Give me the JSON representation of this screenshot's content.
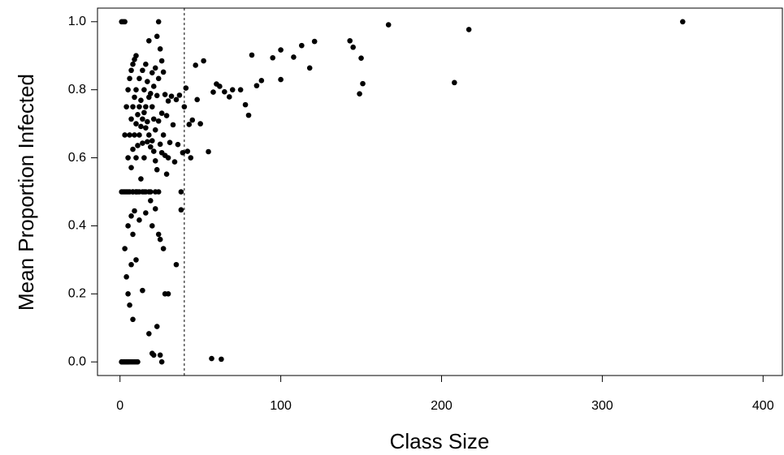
{
  "chart_data": {
    "type": "scatter",
    "x_label": "Class Size",
    "y_label": "Mean Proportion Infected",
    "xlim": [
      -14,
      412
    ],
    "ylim": [
      -0.04,
      1.04
    ],
    "xticks": [
      0,
      100,
      200,
      300,
      400
    ],
    "yticks": [
      {
        "value": 0,
        "label": "0.0"
      },
      {
        "value": 0.2,
        "label": "0.2"
      },
      {
        "value": 0.4,
        "label": "0.4"
      },
      {
        "value": 0.6,
        "label": "0.6"
      },
      {
        "value": 0.8,
        "label": "0.8"
      },
      {
        "value": 1,
        "label": "1.0"
      }
    ],
    "vline": 40,
    "color": "#000000",
    "x": [
      1,
      1,
      1,
      2,
      2,
      2,
      3,
      3,
      3,
      3,
      4,
      4,
      4,
      4,
      5,
      5,
      5,
      5,
      5,
      6,
      6,
      6,
      6,
      7,
      7,
      7,
      7,
      7,
      8,
      8,
      8,
      8,
      8,
      8,
      9,
      9,
      9,
      9,
      10,
      10,
      10,
      10,
      10,
      10,
      10,
      11,
      11,
      11,
      12,
      12,
      12,
      12,
      13,
      13,
      13,
      14,
      14,
      14,
      14,
      15,
      15,
      15,
      16,
      16,
      16,
      16,
      17,
      17,
      17,
      18,
      18,
      18,
      18,
      19,
      19,
      19,
      20,
      20,
      20,
      20,
      21,
      21,
      21,
      22,
      22,
      22,
      23,
      23,
      23,
      24,
      24,
      24,
      24,
      25,
      25,
      25,
      26,
      26,
      26,
      27,
      27,
      27,
      28,
      28,
      29,
      29,
      30,
      30,
      31,
      32,
      33,
      34,
      35,
      36,
      37,
      38,
      39,
      40,
      41,
      42,
      20,
      21,
      23,
      25,
      26,
      28,
      30,
      14,
      18,
      22,
      43,
      45,
      47,
      48,
      50,
      52,
      55,
      57,
      58,
      60,
      62,
      63,
      65,
      68,
      70,
      75,
      78,
      80,
      82,
      85,
      88,
      95,
      100,
      100,
      108,
      113,
      118,
      121,
      143,
      145,
      149,
      150,
      151,
      167,
      208,
      217,
      350,
      35,
      38,
      44,
      3,
      5,
      8,
      10,
      12,
      15,
      16,
      19,
      22,
      24,
      1,
      2,
      3,
      4,
      5,
      6,
      7,
      8,
      9,
      11
    ],
    "values": [
      1,
      0.5,
      0,
      1,
      0.5,
      0,
      0.667,
      0.333,
      1,
      0,
      0.75,
      0.5,
      0.25,
      0,
      0.8,
      0.6,
      0.4,
      0.2,
      0,
      0.833,
      0.667,
      0.5,
      0.167,
      0.857,
      0.714,
      0.571,
      0.429,
      0.286,
      0.875,
      0.75,
      0.625,
      0.5,
      0.375,
      0.125,
      0.889,
      0.778,
      0.667,
      0.444,
      0.9,
      0.8,
      0.7,
      0.6,
      0.5,
      0.3,
      0,
      0.727,
      0.636,
      0.5,
      0.833,
      0.75,
      0.667,
      0.417,
      0.769,
      0.692,
      0.538,
      0.857,
      0.714,
      0.643,
      0.5,
      0.8,
      0.733,
      0.6,
      0.875,
      0.75,
      0.688,
      0.438,
      0.824,
      0.706,
      0.647,
      0.944,
      0.778,
      0.667,
      0.5,
      0.789,
      0.632,
      0.474,
      0.85,
      0.75,
      0.65,
      0.4,
      0.81,
      0.714,
      0.619,
      0.864,
      0.682,
      0.591,
      0.957,
      0.783,
      0.565,
      1,
      0.833,
      0.708,
      0.375,
      0.92,
      0.64,
      0.36,
      0.885,
      0.731,
      0.615,
      0.852,
      0.667,
      0.333,
      0.786,
      0.607,
      0.724,
      0.552,
      0.767,
      0.6,
      0.645,
      0.781,
      0.697,
      0.588,
      0.771,
      0.639,
      0.784,
      0.447,
      0.615,
      0.75,
      0.805,
      0.619,
      0.025,
      0.02,
      0.104,
      0.02,
      0,
      0.2,
      0.2,
      0.21,
      0.083,
      0.45,
      0.698,
      0.711,
      0.872,
      0.771,
      0.7,
      0.885,
      0.618,
      0.01,
      0.793,
      0.817,
      0.81,
      0.008,
      0.794,
      0.779,
      0.8,
      0.8,
      0.756,
      0.725,
      0.902,
      0.812,
      0.827,
      0.894,
      0.917,
      0.83,
      0.896,
      0.93,
      0.864,
      0.942,
      0.944,
      0.925,
      0.788,
      0.893,
      0.818,
      0.991,
      0.821,
      0.977,
      1,
      0.286,
      0.5,
      0.6,
      0.5,
      0.5,
      0.5,
      0.5,
      0.5,
      0.5,
      0.5,
      0.5,
      0.5,
      0.5,
      0,
      0,
      0,
      0,
      0,
      0,
      0,
      0,
      0,
      0
    ]
  }
}
